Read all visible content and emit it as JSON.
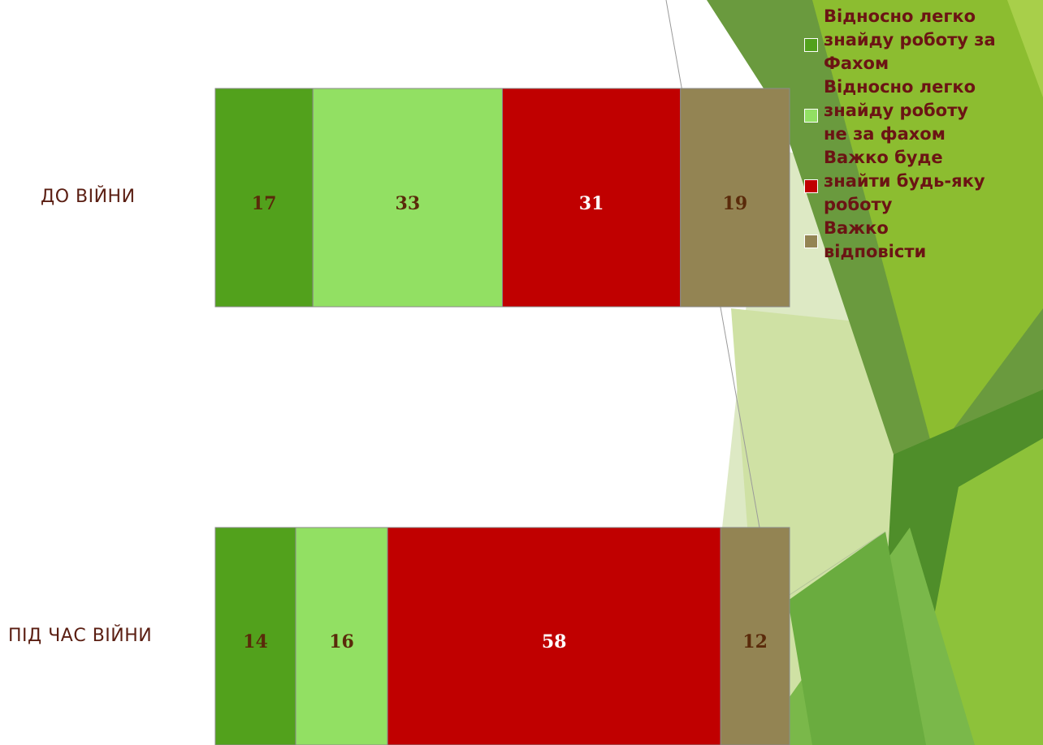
{
  "chart_data": {
    "type": "bar",
    "orientation": "horizontal",
    "stacked": true,
    "percent": true,
    "categories": [
      "ДО ВІЙНИ",
      "ПІД ЧАС ВІЙНИ"
    ],
    "series": [
      {
        "name": "Відносно легко знайду роботу за Фахом",
        "values": [
          17,
          14
        ],
        "color": "#52a11c"
      },
      {
        "name": "Відносно легко знайду роботу не за фахом",
        "values": [
          33,
          16
        ],
        "color": "#92e063"
      },
      {
        "name": "Важко буде знайти будь-яку роботу",
        "values": [
          31,
          58
        ],
        "color": "#c00000"
      },
      {
        "name": "Важко відповісти",
        "values": [
          19,
          12
        ],
        "color": "#938453"
      }
    ],
    "data_label_colors": [
      "#5a2a0a",
      "#5a2a0a",
      "#ffffff",
      "#5a2a0a"
    ],
    "legend": {
      "position": "top-right",
      "lines": [
        [
          "Відносно легко",
          "знайду роботу за",
          "Фахом"
        ],
        [
          "Відносно легко",
          "знайду роботу",
          "не за фахом"
        ],
        [
          "Важко буде",
          "знайти будь-яку",
          "роботу"
        ],
        [
          "Важко",
          "відповісти"
        ]
      ]
    },
    "xlim": [
      0,
      100
    ],
    "title": "",
    "xlabel": "",
    "ylabel": "",
    "grid": false
  }
}
